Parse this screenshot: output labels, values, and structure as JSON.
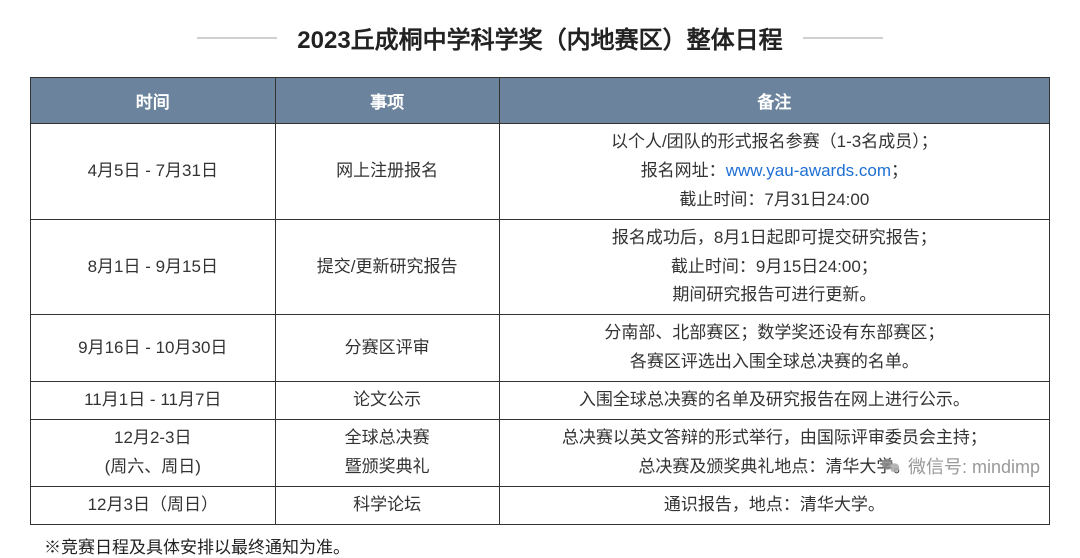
{
  "title": "2023丘成桐中学科学奖（内地赛区）整体日程",
  "columns": [
    "时间",
    "事项",
    "备注"
  ],
  "rows": [
    {
      "time": "4月5日 - 7月31日",
      "item": "网上注册报名",
      "note_lines": [
        "以个人/团队的形式报名参赛（1-3名成员）；",
        "报名网址：{LINK}；",
        "截止时间：7月31日24:00"
      ],
      "link_text": "www.yau-awards.com"
    },
    {
      "time": "8月1日 - 9月15日",
      "item": "提交/更新研究报告",
      "note_lines": [
        "报名成功后，8月1日起即可提交研究报告；",
        "截止时间：9月15日24:00；",
        "期间研究报告可进行更新。"
      ]
    },
    {
      "time": "9月16日 - 10月30日",
      "item": "分赛区评审",
      "note_lines": [
        "分南部、北部赛区；数学奖还设有东部赛区；",
        "各赛区评选出入围全球总决赛的名单。"
      ]
    },
    {
      "time": "11月1日 - 11月7日",
      "item": "论文公示",
      "note_lines": [
        "入围全球总决赛的名单及研究报告在网上进行公示。"
      ]
    },
    {
      "time_lines": [
        "12月2-3日",
        "(周六、周日)"
      ],
      "item_lines": [
        "全球总决赛",
        "暨颁奖典礼"
      ],
      "note_lines": [
        "总决赛以英文答辩的形式举行，由国际评审委员会主持；",
        "总决赛及颁奖典礼地点：清华大学。"
      ]
    },
    {
      "time": "12月3日（周日）",
      "item": "科学论坛",
      "note_lines": [
        "通识报告，地点：清华大学。"
      ]
    }
  ],
  "footnote": "※竞赛日程及具体安排以最终通知为准。",
  "watermark": "微信号: mindimp",
  "colors": {
    "header_bg": "#6b839c",
    "header_fg": "#ffffff",
    "border": "#333333",
    "link": "#1f6fd4",
    "rule": "#d0d0d0"
  }
}
